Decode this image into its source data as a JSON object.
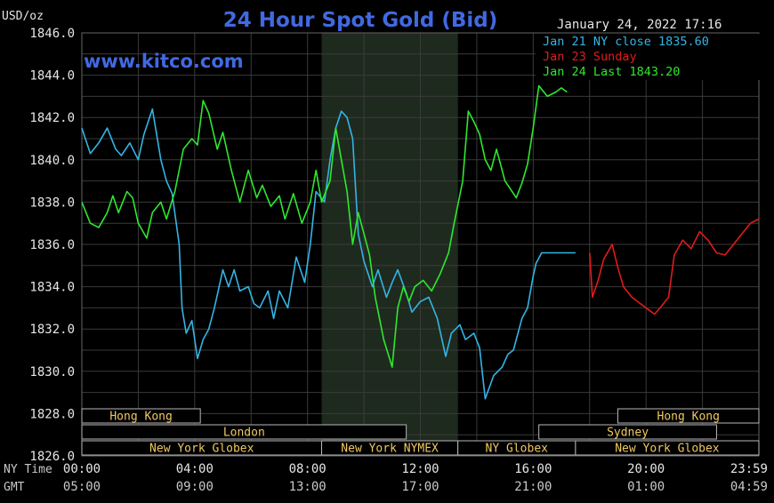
{
  "colors": {
    "background": "#000000",
    "grid": "#3a3a3a",
    "highlight": "#1f2a1f",
    "title": "#4169e1",
    "axis_text": "#e6e6e6",
    "jan21": "#33b5e5",
    "jan23": "#e01b1b",
    "jan24": "#2ee82e",
    "session_fill": "#000000",
    "session_border": "#b8b8b8",
    "session_text": "#f0c860",
    "time_text": "#c8c8c8"
  },
  "chart_data": {
    "type": "line",
    "title": "24 Hour Spot Gold (Bid)",
    "ylabel": "USD/oz",
    "datetime": "January 24, 2022 17:16",
    "brand": "www.kitco.com",
    "ylim": [
      1826,
      1846
    ],
    "xlim": [
      0,
      24
    ],
    "y_ticks": [
      "1846.0",
      "1844.0",
      "1842.0",
      "1840.0",
      "1838.0",
      "1836.0",
      "1834.0",
      "1832.0",
      "1830.0",
      "1828.0",
      "1826.0"
    ],
    "highlight_x": [
      8.5,
      13.33
    ],
    "legend": [
      {
        "text": "Jan 21 NY close 1835.60",
        "color_key": "jan21"
      },
      {
        "text": "Jan 23 Sunday",
        "color_key": "jan23"
      },
      {
        "text": "Jan 24 Last 1843.20",
        "color_key": "jan24"
      }
    ],
    "x_rows": [
      {
        "label": "NY Time",
        "ticks": [
          {
            "x": 0,
            "t": "00:00"
          },
          {
            "x": 4,
            "t": "04:00"
          },
          {
            "x": 8,
            "t": "08:00"
          },
          {
            "x": 12,
            "t": "12:00"
          },
          {
            "x": 16,
            "t": "16:00"
          },
          {
            "x": 20,
            "t": "20:00"
          },
          {
            "x": 24,
            "t": "23:59"
          }
        ]
      },
      {
        "label": "GMT",
        "ticks": [
          {
            "x": 0,
            "t": "05:00"
          },
          {
            "x": 4,
            "t": "09:00"
          },
          {
            "x": 8,
            "t": "13:00"
          },
          {
            "x": 12,
            "t": "17:00"
          },
          {
            "x": 16,
            "t": "21:00"
          },
          {
            "x": 20,
            "t": "01:00"
          },
          {
            "x": 24,
            "t": "04:59"
          }
        ]
      }
    ],
    "sessions": [
      {
        "name": "Hong Kong",
        "row": 0,
        "x0": 0,
        "x1": 4.2
      },
      {
        "name": "Hong Kong",
        "row": 0,
        "x0": 19,
        "x1": 24
      },
      {
        "name": "London",
        "row": 1,
        "x0": 0,
        "x1": 11.5
      },
      {
        "name": "Sydney",
        "row": 1,
        "x0": 16.2,
        "x1": 22.5
      },
      {
        "name": "New York Globex",
        "row": 2,
        "x0": 0,
        "x1": 8.5
      },
      {
        "name": "New York NYMEX",
        "row": 2,
        "x0": 8.5,
        "x1": 13.33
      },
      {
        "name": "NY Globex",
        "row": 2,
        "x0": 13.33,
        "x1": 17.5
      },
      {
        "name": "New York Globex",
        "row": 2,
        "x0": 17.5,
        "x1": 24
      }
    ],
    "series": [
      {
        "name": "Jan 21 NY close 1835.60",
        "color_key": "jan21",
        "x": [
          0,
          0.3,
          0.6,
          0.9,
          1.2,
          1.4,
          1.7,
          2.0,
          2.2,
          2.5,
          2.8,
          3.0,
          3.2,
          3.45,
          3.55,
          3.7,
          3.9,
          4.1,
          4.3,
          4.5,
          4.7,
          5.0,
          5.2,
          5.4,
          5.6,
          5.9,
          6.1,
          6.3,
          6.6,
          6.8,
          7.0,
          7.3,
          7.6,
          7.9,
          8.1,
          8.3,
          8.6,
          8.8,
          9.0,
          9.2,
          9.4,
          9.6,
          9.8,
          10.0,
          10.3,
          10.5,
          10.8,
          11.0,
          11.2,
          11.5,
          11.7,
          12.0,
          12.3,
          12.6,
          12.9,
          13.1,
          13.4,
          13.6,
          13.9,
          14.1,
          14.3,
          14.6,
          14.9,
          15.1,
          15.3,
          15.6,
          15.8,
          16.0,
          16.1,
          16.3,
          16.6,
          16.8,
          17.0,
          17.2,
          17.5
        ],
        "y": [
          1841.5,
          1840.3,
          1840.8,
          1841.5,
          1840.5,
          1840.2,
          1840.8,
          1840.0,
          1841.2,
          1842.4,
          1840.0,
          1839.0,
          1838.4,
          1836.0,
          1833.0,
          1831.8,
          1832.4,
          1830.6,
          1831.5,
          1832.0,
          1833.0,
          1834.8,
          1834.0,
          1834.8,
          1833.8,
          1834.0,
          1833.2,
          1833.0,
          1833.8,
          1832.5,
          1833.8,
          1833.0,
          1835.4,
          1834.2,
          1836.0,
          1838.5,
          1838.0,
          1840.0,
          1841.5,
          1842.3,
          1842.0,
          1841.0,
          1836.5,
          1835.2,
          1834.0,
          1834.8,
          1833.5,
          1834.2,
          1834.8,
          1833.7,
          1832.8,
          1833.3,
          1833.5,
          1832.5,
          1830.7,
          1831.8,
          1832.2,
          1831.5,
          1831.8,
          1831.1,
          1828.7,
          1829.8,
          1830.2,
          1830.8,
          1831.0,
          1832.5,
          1833.0,
          1834.5,
          1835.1,
          1835.6,
          1835.6,
          1835.6,
          1835.6,
          1835.6,
          1835.6
        ]
      },
      {
        "name": "Jan 23 Sunday",
        "color_key": "jan23",
        "x": [
          18.0,
          18.1,
          18.3,
          18.5,
          18.8,
          19.0,
          19.2,
          19.5,
          19.8,
          20.1,
          20.3,
          20.5,
          20.8,
          21.0,
          21.3,
          21.6,
          21.9,
          22.2,
          22.5,
          22.8,
          23.1,
          23.4,
          23.7,
          24.0
        ],
        "y": [
          1835.6,
          1833.5,
          1834.3,
          1835.3,
          1836.0,
          1834.9,
          1834.0,
          1833.5,
          1833.2,
          1832.9,
          1832.7,
          1833.0,
          1833.5,
          1835.5,
          1836.2,
          1835.8,
          1836.6,
          1836.2,
          1835.6,
          1835.5,
          1836.0,
          1836.5,
          1837.0,
          1837.2
        ]
      },
      {
        "name": "Jan 24 Last 1843.20",
        "color_key": "jan24",
        "x": [
          0,
          0.3,
          0.6,
          0.9,
          1.1,
          1.3,
          1.6,
          1.8,
          2.0,
          2.3,
          2.5,
          2.8,
          3.0,
          3.3,
          3.6,
          3.9,
          4.1,
          4.3,
          4.5,
          4.8,
          5.0,
          5.3,
          5.6,
          5.9,
          6.2,
          6.4,
          6.7,
          7.0,
          7.2,
          7.5,
          7.8,
          8.1,
          8.3,
          8.5,
          8.8,
          9.0,
          9.2,
          9.4,
          9.6,
          9.8,
          10.0,
          10.2,
          10.4,
          10.7,
          11.0,
          11.2,
          11.4,
          11.6,
          11.8,
          12.1,
          12.4,
          12.7,
          13.0,
          13.2,
          13.5,
          13.7,
          13.9,
          14.1,
          14.3,
          14.5,
          14.7,
          15.0,
          15.2,
          15.4,
          15.6,
          15.8,
          16.0,
          16.2,
          16.5,
          16.8,
          17.0,
          17.2
        ],
        "y": [
          1838.0,
          1837.0,
          1836.8,
          1837.5,
          1838.3,
          1837.5,
          1838.5,
          1838.2,
          1837.0,
          1836.3,
          1837.5,
          1838.0,
          1837.2,
          1838.5,
          1840.5,
          1841.0,
          1840.7,
          1842.8,
          1842.2,
          1840.5,
          1841.3,
          1839.5,
          1838.0,
          1839.5,
          1838.2,
          1838.8,
          1837.8,
          1838.3,
          1837.2,
          1838.4,
          1837.0,
          1838.0,
          1839.5,
          1838.0,
          1839.0,
          1841.5,
          1840.0,
          1838.5,
          1836.0,
          1837.5,
          1836.5,
          1835.5,
          1833.5,
          1831.5,
          1830.2,
          1833.0,
          1834.0,
          1833.3,
          1834.0,
          1834.3,
          1833.8,
          1834.6,
          1835.6,
          1837.0,
          1839.0,
          1842.3,
          1841.8,
          1841.2,
          1840.0,
          1839.5,
          1840.5,
          1839.0,
          1838.6,
          1838.2,
          1838.9,
          1839.8,
          1841.5,
          1843.5,
          1843.0,
          1843.2,
          1843.4,
          1843.2
        ]
      }
    ]
  }
}
